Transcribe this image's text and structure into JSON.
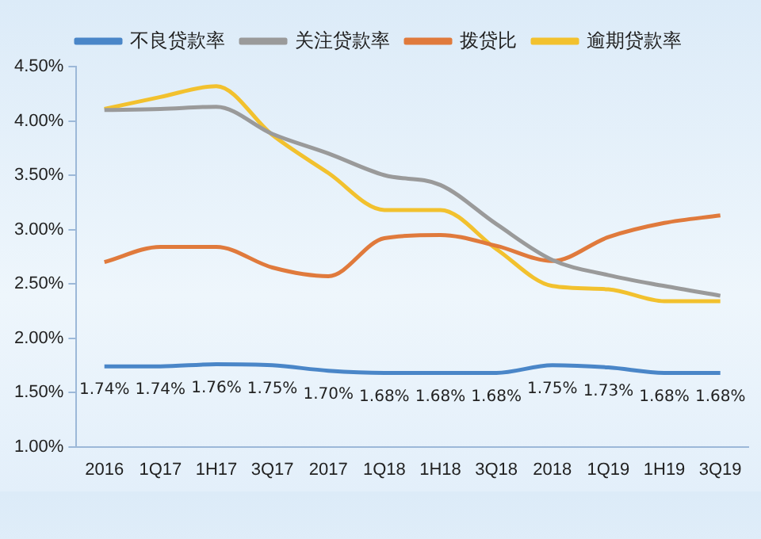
{
  "chart_data": {
    "type": "line",
    "categories": [
      "2016",
      "1Q17",
      "1H17",
      "3Q17",
      "2017",
      "1Q18",
      "1H18",
      "3Q18",
      "2018",
      "1Q19",
      "1H19",
      "3Q19"
    ],
    "series": [
      {
        "name": "不良贷款率",
        "color": "#4a86c8",
        "values": [
          1.74,
          1.74,
          1.76,
          1.75,
          1.7,
          1.68,
          1.68,
          1.68,
          1.75,
          1.73,
          1.68,
          1.68
        ],
        "value_labels": [
          "1.74%",
          "1.74%",
          "1.76%",
          "1.75%",
          "1.70%",
          "1.68%",
          "1.68%",
          "1.68%",
          "1.75%",
          "1.73%",
          "1.68%",
          "1.68%"
        ]
      },
      {
        "name": "关注贷款率",
        "color": "#9a9a9a",
        "values": [
          4.1,
          4.11,
          4.13,
          3.88,
          3.7,
          3.5,
          3.41,
          3.05,
          2.72,
          2.58,
          2.48,
          2.39
        ]
      },
      {
        "name": "拨贷比",
        "color": "#e07a3c",
        "values": [
          2.7,
          2.84,
          2.84,
          2.65,
          2.57,
          2.92,
          2.95,
          2.85,
          2.71,
          2.93,
          3.06,
          3.13
        ]
      },
      {
        "name": "逾期贷款率",
        "color": "#f2c12e",
        "values": [
          4.11,
          4.22,
          4.32,
          3.87,
          3.52,
          3.18,
          3.18,
          2.82,
          2.48,
          2.45,
          2.34,
          2.34
        ]
      }
    ],
    "ylim": [
      1,
      4.5
    ],
    "yticks": [
      {
        "value": 1,
        "label": "1.00%"
      },
      {
        "value": 1.5,
        "label": "1.50%"
      },
      {
        "value": 2,
        "label": "2.00%"
      },
      {
        "value": 2.5,
        "label": "2.50%"
      },
      {
        "value": 3,
        "label": "3.00%"
      },
      {
        "value": 3.5,
        "label": "3.50%"
      },
      {
        "value": 4,
        "label": "4.00%"
      },
      {
        "value": 4.5,
        "label": "4.50%"
      }
    ],
    "grid": false,
    "legend": "top",
    "marker": "none",
    "line_style": "solid"
  }
}
